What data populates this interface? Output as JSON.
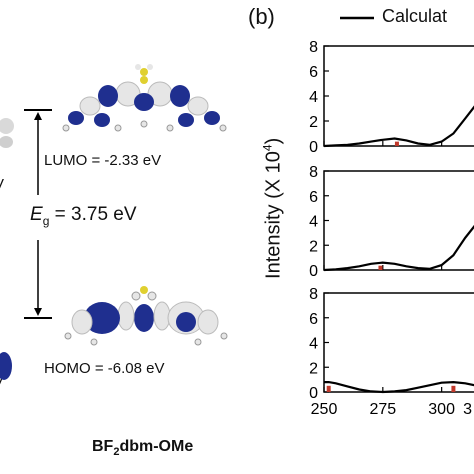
{
  "left_panel": {
    "lumo_label": "LUMO = -2.33 eV",
    "homo_label": "HOMO = -6.08 eV",
    "gap_symbol": "E",
    "gap_subscript": "g",
    "gap_value": " = 3.75 eV",
    "molecule_name": "BF",
    "molecule_subscript": "2",
    "molecule_suffix": "dbm-OMe",
    "clipped_left_text_1": "V",
    "clipped_left_text_2": "V"
  },
  "right_panel": {
    "panel_label": "(b)",
    "legend_label": "Calculat",
    "ylabel_prefix": "Intensity (X 10",
    "ylabel_exp": "4",
    "ylabel_suffix": ")"
  },
  "colors": {
    "curve": "#000000",
    "stick": "#c0392b",
    "orbital_dark": "#1f2f8f",
    "orbital_light": "#e6e6e6"
  },
  "chart_data": {
    "type": "line",
    "xlim": [
      250,
      318
    ],
    "ylim": [
      0,
      8
    ],
    "x_ticks": [
      250,
      275,
      300
    ],
    "x_tick_labels": [
      "250",
      "275",
      "300",
      "3"
    ],
    "y_ticks": [
      0,
      2,
      4,
      6,
      8
    ],
    "y_tick_labels": [
      "0",
      "2",
      "4",
      "6",
      "8"
    ],
    "legend": "top",
    "panels": [
      {
        "curve": {
          "x": [
            250,
            255,
            260,
            265,
            270,
            275,
            280,
            285,
            290,
            295,
            300,
            305,
            310,
            315,
            318
          ],
          "y": [
            0.0,
            0.05,
            0.1,
            0.2,
            0.35,
            0.5,
            0.6,
            0.45,
            0.2,
            0.1,
            0.35,
            1.0,
            2.2,
            3.4,
            4.0
          ]
        },
        "sticks": [
          {
            "x": 281,
            "y": 0.35
          }
        ]
      },
      {
        "curve": {
          "x": [
            250,
            255,
            260,
            265,
            270,
            275,
            280,
            285,
            290,
            295,
            300,
            305,
            310,
            315,
            318
          ],
          "y": [
            0.0,
            0.05,
            0.15,
            0.3,
            0.5,
            0.6,
            0.5,
            0.3,
            0.15,
            0.1,
            0.4,
            1.2,
            2.6,
            3.8,
            4.3
          ]
        },
        "sticks": [
          {
            "x": 274,
            "y": 0.35
          }
        ]
      },
      {
        "curve": {
          "x": [
            250,
            252,
            255,
            260,
            265,
            270,
            275,
            280,
            285,
            290,
            295,
            300,
            305,
            310,
            315,
            318
          ],
          "y": [
            0.8,
            0.8,
            0.7,
            0.45,
            0.2,
            0.05,
            0.0,
            0.05,
            0.15,
            0.35,
            0.55,
            0.75,
            0.8,
            0.7,
            0.5,
            0.4
          ]
        },
        "sticks": [
          {
            "x": 252,
            "y": 0.5
          },
          {
            "x": 305,
            "y": 0.5
          }
        ]
      }
    ]
  }
}
